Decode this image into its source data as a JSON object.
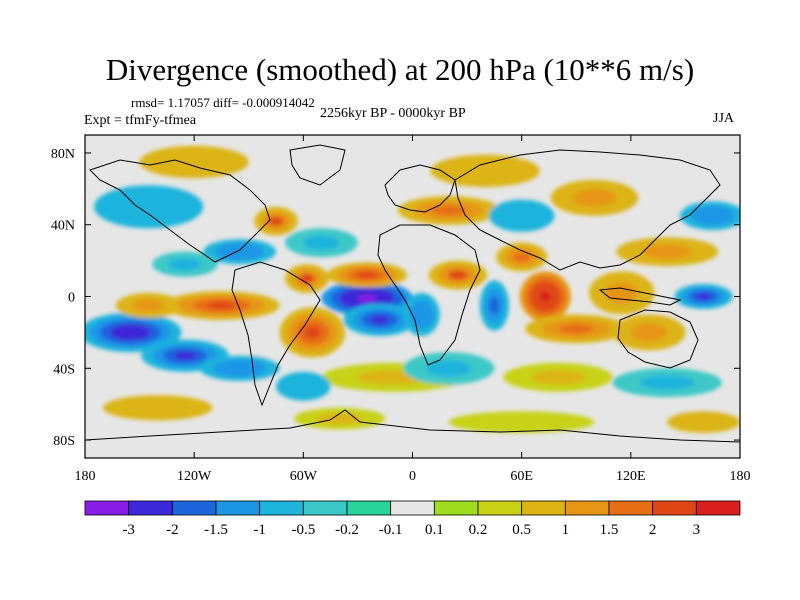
{
  "title": "Divergence (smoothed) at 200 hPa (10**6 m/s)",
  "stats": "rmsd= 1.17057 diff= -0.000914042",
  "expt": "Expt = tfmFy-tfmea",
  "period": "2256kyr BP - 0000kyr BP",
  "season": "JJA",
  "chart_data": {
    "type": "heatmap",
    "title": "Divergence (smoothed) at 200 hPa (10**6 m/s)",
    "subtitle": "2256kyr BP - 0000kyr BP",
    "units": "10**6 m/s",
    "x_range": [
      -180,
      180
    ],
    "y_range": [
      -90,
      90
    ],
    "x_ticks": [
      {
        "value": -180,
        "label": "180"
      },
      {
        "value": -120,
        "label": "120W"
      },
      {
        "value": -60,
        "label": "60W"
      },
      {
        "value": 0,
        "label": "0"
      },
      {
        "value": 60,
        "label": "60E"
      },
      {
        "value": 120,
        "label": "120E"
      },
      {
        "value": 180,
        "label": "180"
      }
    ],
    "y_ticks": [
      {
        "value": 80,
        "label": "80N"
      },
      {
        "value": 40,
        "label": "40N"
      },
      {
        "value": 0,
        "label": "0"
      },
      {
        "value": -40,
        "label": "40S"
      },
      {
        "value": -80,
        "label": "80S"
      }
    ],
    "colorbar": {
      "colors": [
        "#8a1ee8",
        "#3c28d8",
        "#1e64dc",
        "#1e96e6",
        "#1eb4dc",
        "#3cc8c8",
        "#28d29b",
        "#e6e6e6",
        "#a0dc1e",
        "#c8d214",
        "#dcb414",
        "#e69614",
        "#e66e14",
        "#e04614",
        "#d81e1e"
      ],
      "labels": [
        "-3",
        "-2",
        "-1.5",
        "-1",
        "-0.5",
        "-0.2",
        "-0.1",
        "0.1",
        "0.2",
        "0.5",
        "1",
        "1.5",
        "2",
        "3"
      ]
    },
    "features": [
      {
        "lon": -25,
        "lat": -1,
        "rx": 25,
        "ry": 10,
        "v": -3.5
      },
      {
        "lon": -18,
        "lat": -13,
        "rx": 20,
        "ry": 9,
        "v": -2.5
      },
      {
        "lon": -155,
        "lat": -20,
        "rx": 28,
        "ry": 11,
        "v": -3.0
      },
      {
        "lon": -125,
        "lat": -33,
        "rx": 24,
        "ry": 9,
        "v": -2.5
      },
      {
        "lon": -95,
        "lat": -40,
        "rx": 22,
        "ry": 7,
        "v": -1.5
      },
      {
        "lon": -145,
        "lat": -5,
        "rx": 18,
        "ry": 7,
        "v": 1.2
      },
      {
        "lon": -105,
        "lat": -5,
        "rx": 32,
        "ry": 8,
        "v": 2.2
      },
      {
        "lon": -55,
        "lat": -20,
        "rx": 18,
        "ry": 14,
        "v": 2.5
      },
      {
        "lon": -58,
        "lat": 10,
        "rx": 12,
        "ry": 8,
        "v": 2.0
      },
      {
        "lon": -25,
        "lat": 12,
        "rx": 22,
        "ry": 7,
        "v": 2.5
      },
      {
        "lon": 25,
        "lat": 12,
        "rx": 16,
        "ry": 8,
        "v": 2.0
      },
      {
        "lon": 5,
        "lat": -10,
        "rx": 10,
        "ry": 12,
        "v": -1.5
      },
      {
        "lon": 45,
        "lat": -5,
        "rx": 8,
        "ry": 14,
        "v": -2.0
      },
      {
        "lon": 73,
        "lat": 0,
        "rx": 14,
        "ry": 14,
        "v": 3.5
      },
      {
        "lon": 60,
        "lat": 22,
        "rx": 14,
        "ry": 8,
        "v": 1.5
      },
      {
        "lon": 90,
        "lat": -18,
        "rx": 28,
        "ry": 8,
        "v": 1.5
      },
      {
        "lon": 115,
        "lat": 2,
        "rx": 18,
        "ry": 12,
        "v": 1.2
      },
      {
        "lon": 160,
        "lat": 0,
        "rx": 16,
        "ry": 7,
        "v": -2.5
      },
      {
        "lon": 130,
        "lat": -20,
        "rx": 20,
        "ry": 10,
        "v": 1.0
      },
      {
        "lon": 140,
        "lat": 25,
        "rx": 28,
        "ry": 8,
        "v": 1.0
      },
      {
        "lon": 165,
        "lat": 45,
        "rx": 18,
        "ry": 8,
        "v": -1.5
      },
      {
        "lon": -145,
        "lat": 50,
        "rx": 30,
        "ry": 12,
        "v": -1.0
      },
      {
        "lon": -75,
        "lat": 42,
        "rx": 12,
        "ry": 8,
        "v": 2.0
      },
      {
        "lon": -95,
        "lat": 25,
        "rx": 20,
        "ry": 7,
        "v": -1.5
      },
      {
        "lon": -125,
        "lat": 18,
        "rx": 18,
        "ry": 7,
        "v": -0.8
      },
      {
        "lon": -50,
        "lat": 30,
        "rx": 20,
        "ry": 8,
        "v": -0.8
      },
      {
        "lon": -120,
        "lat": 75,
        "rx": 30,
        "ry": 9,
        "v": 0.5
      },
      {
        "lon": 40,
        "lat": 70,
        "rx": 30,
        "ry": 9,
        "v": 0.5
      },
      {
        "lon": 20,
        "lat": 48,
        "rx": 28,
        "ry": 8,
        "v": 1.5
      },
      {
        "lon": 60,
        "lat": 45,
        "rx": 18,
        "ry": 9,
        "v": -1.0
      },
      {
        "lon": 100,
        "lat": 55,
        "rx": 24,
        "ry": 10,
        "v": 1.0
      },
      {
        "lon": -10,
        "lat": -45,
        "rx": 40,
        "ry": 8,
        "v": 0.8
      },
      {
        "lon": 20,
        "lat": -40,
        "rx": 25,
        "ry": 9,
        "v": -0.8
      },
      {
        "lon": 80,
        "lat": -45,
        "rx": 30,
        "ry": 8,
        "v": 0.8
      },
      {
        "lon": 140,
        "lat": -48,
        "rx": 30,
        "ry": 8,
        "v": -0.8
      },
      {
        "lon": -140,
        "lat": -62,
        "rx": 30,
        "ry": 7,
        "v": 0.6
      },
      {
        "lon": 60,
        "lat": -70,
        "rx": 40,
        "ry": 6,
        "v": 0.4
      },
      {
        "lon": -40,
        "lat": -68,
        "rx": 25,
        "ry": 6,
        "v": 0.8
      },
      {
        "lon": 160,
        "lat": -70,
        "rx": 20,
        "ry": 6,
        "v": 0.5
      },
      {
        "lon": -60,
        "lat": -50,
        "rx": 15,
        "ry": 8,
        "v": -1.0
      }
    ]
  }
}
